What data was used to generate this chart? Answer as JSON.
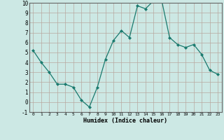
{
  "x": [
    0,
    1,
    2,
    3,
    4,
    5,
    6,
    7,
    8,
    9,
    10,
    11,
    12,
    13,
    14,
    15,
    16,
    17,
    18,
    19,
    20,
    21,
    22,
    23
  ],
  "y": [
    5.2,
    4.0,
    3.0,
    1.8,
    1.8,
    1.5,
    0.2,
    -0.5,
    1.5,
    4.3,
    6.2,
    7.2,
    6.5,
    9.7,
    9.4,
    10.2,
    10.3,
    6.5,
    5.8,
    5.5,
    5.8,
    4.8,
    3.2,
    2.8
  ],
  "xlabel": "Humidex (Indice chaleur)",
  "ylim": [
    -1,
    10
  ],
  "xlim_min": -0.5,
  "xlim_max": 23.5,
  "yticks": [
    -1,
    0,
    1,
    2,
    3,
    4,
    5,
    6,
    7,
    8,
    9,
    10
  ],
  "xticks": [
    0,
    1,
    2,
    3,
    4,
    5,
    6,
    7,
    8,
    9,
    10,
    11,
    12,
    13,
    14,
    15,
    16,
    17,
    18,
    19,
    20,
    21,
    22,
    23
  ],
  "line_color": "#1a7a6e",
  "marker_color": "#1a7a6e",
  "bg_color": "#cce8e4",
  "grid_color": "#b8a8a0",
  "spine_color": "#666666"
}
